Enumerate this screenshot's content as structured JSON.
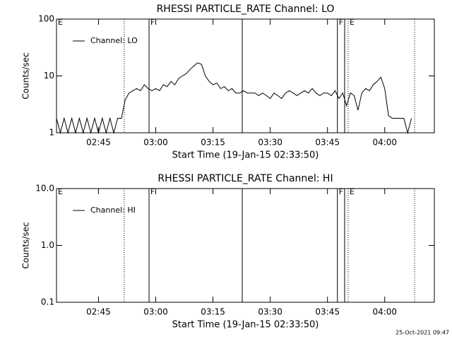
{
  "chart_data": [
    {
      "type": "line",
      "title": "RHESSI PARTICLE_RATE Channel: LO",
      "xlabel": "Start Time (19-Jan-15 02:33:50)",
      "ylabel": "Counts/sec",
      "log_y": true,
      "legend": "upper left",
      "xlim": [
        "02:34",
        "04:13"
      ],
      "xticks": [
        "02:45",
        "03:00",
        "03:15",
        "03:30",
        "03:45",
        "04:00"
      ],
      "ylim": [
        1,
        100
      ],
      "yticks": [
        1,
        10,
        100
      ],
      "series": [
        {
          "name": "Channel: LO",
          "color": "#000000",
          "x": [
            "02:34",
            "02:35",
            "02:36",
            "02:37",
            "02:38",
            "02:39",
            "02:40",
            "02:41",
            "02:42",
            "02:43",
            "02:44",
            "02:45",
            "02:46",
            "02:47",
            "02:48",
            "02:49",
            "02:50",
            "02:51",
            "02:52",
            "02:53",
            "02:54",
            "02:55",
            "02:56",
            "02:57",
            "02:58",
            "02:59",
            "03:00",
            "03:01",
            "03:02",
            "03:03",
            "03:04",
            "03:05",
            "03:06",
            "03:07",
            "03:08",
            "03:09",
            "03:10",
            "03:11",
            "03:12",
            "03:13",
            "03:14",
            "03:15",
            "03:16",
            "03:17",
            "03:18",
            "03:19",
            "03:20",
            "03:21",
            "03:22",
            "03:23",
            "03:24",
            "03:25",
            "03:26",
            "03:27",
            "03:28",
            "03:29",
            "03:30",
            "03:31",
            "03:32",
            "03:33",
            "03:34",
            "03:35",
            "03:36",
            "03:37",
            "03:38",
            "03:39",
            "03:40",
            "03:41",
            "03:42",
            "03:43",
            "03:44",
            "03:45",
            "03:46",
            "03:47",
            "03:48",
            "03:49",
            "03:50",
            "03:51",
            "03:52",
            "03:53",
            "03:54",
            "03:55",
            "03:56",
            "03:57",
            "03:58",
            "03:59",
            "04:00",
            "04:01",
            "04:02",
            "04:03",
            "04:04",
            "04:05",
            "04:06",
            "04:07"
          ],
          "values": [
            1.8,
            1,
            1.8,
            1,
            1.8,
            1,
            1.8,
            1,
            1.8,
            1,
            1.8,
            1,
            1.8,
            1,
            1.8,
            1,
            1.8,
            1.8,
            3.8,
            5,
            5.5,
            6,
            5.5,
            7,
            6,
            5.5,
            6,
            5.5,
            7,
            6.5,
            8,
            7,
            9,
            10,
            11,
            13,
            15,
            17,
            16,
            10,
            8,
            7,
            7.5,
            6,
            6.5,
            5.5,
            6,
            5,
            5,
            5.5,
            5,
            5,
            5,
            4.5,
            5,
            4.5,
            4,
            5,
            4.5,
            4,
            5,
            5.5,
            5,
            4.5,
            5,
            5.5,
            5,
            6,
            5,
            4.5,
            5,
            5,
            4.5,
            5.5,
            4,
            5,
            3,
            5,
            4.5,
            2.5,
            5,
            6,
            5.5,
            7,
            8,
            9.5,
            6,
            2,
            1.8,
            1.8,
            1.8,
            1.8,
            1,
            1.8
          ]
        }
      ],
      "vlines": [
        {
          "x": "02:51:45",
          "style": "dotted"
        },
        {
          "x": "02:58:15",
          "style": "solid"
        },
        {
          "x": "03:22:40",
          "style": "solid"
        },
        {
          "x": "03:47:36",
          "style": "solid"
        },
        {
          "x": "03:49:30",
          "style": "solid"
        },
        {
          "x": "03:50:25",
          "style": "dotted"
        },
        {
          "x": "04:07:50",
          "style": "dotted"
        }
      ],
      "flags": [
        {
          "x": "02:34",
          "label": "E"
        },
        {
          "x": "02:58:15",
          "label": "F"
        },
        {
          "x": "03:47:36",
          "label": "F"
        },
        {
          "x": "03:50:25",
          "label": "E"
        }
      ]
    },
    {
      "type": "line",
      "title": "RHESSI PARTICLE_RATE Channel: HI",
      "xlabel": "Start Time (19-Jan-15 02:33:50)",
      "ylabel": "Counts/sec",
      "log_y": true,
      "legend": "upper left",
      "xlim": [
        "02:34",
        "04:13"
      ],
      "xticks": [
        "02:45",
        "03:00",
        "03:15",
        "03:30",
        "03:45",
        "04:00"
      ],
      "ylim": [
        0.1,
        10
      ],
      "yticks": [
        0.1,
        {
          "value": 1,
          "label": "1.0"
        },
        {
          "value": 10,
          "label": "10.0"
        }
      ],
      "series": [
        {
          "name": "Channel: HI",
          "color": "#000000",
          "x": [],
          "values": []
        }
      ],
      "vlines": [
        {
          "x": "02:51:45",
          "style": "dotted"
        },
        {
          "x": "02:58:15",
          "style": "solid"
        },
        {
          "x": "03:22:40",
          "style": "solid"
        },
        {
          "x": "03:47:36",
          "style": "solid"
        },
        {
          "x": "03:49:30",
          "style": "solid"
        },
        {
          "x": "03:50:25",
          "style": "dotted"
        },
        {
          "x": "04:07:50",
          "style": "dotted"
        }
      ],
      "flags": [
        {
          "x": "02:34",
          "label": "E"
        },
        {
          "x": "02:58:15",
          "label": "F"
        },
        {
          "x": "03:47:36",
          "label": "F"
        },
        {
          "x": "03:50:25",
          "label": "E"
        }
      ]
    }
  ],
  "footer": "25-Oct-2021 09:47"
}
